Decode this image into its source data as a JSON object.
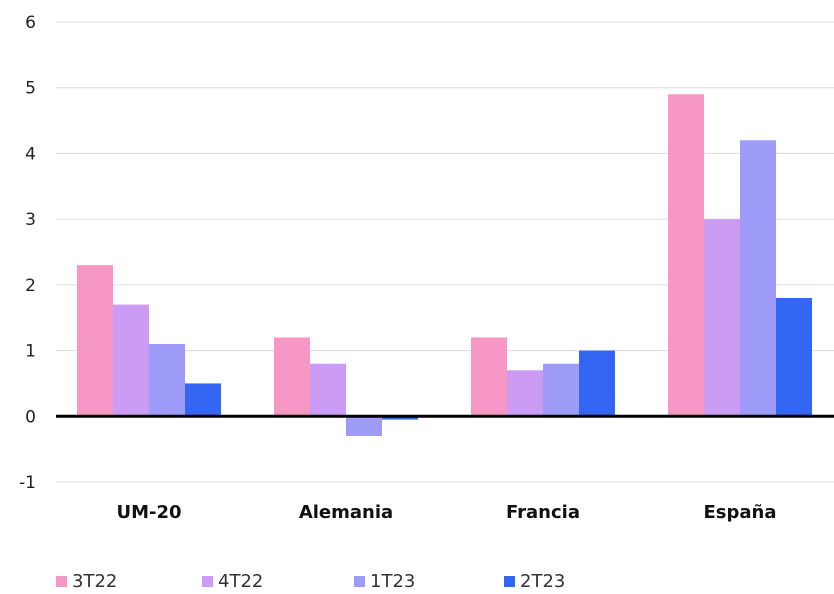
{
  "chart_data": {
    "type": "bar",
    "title": "",
    "xlabel": "",
    "ylabel": "",
    "categories": [
      "UM-20",
      "Alemania",
      "Francia",
      "España"
    ],
    "series": [
      {
        "name": "3T22",
        "color": "#f797c5",
        "values": [
          2.3,
          1.2,
          1.2,
          4.9
        ]
      },
      {
        "name": "4T22",
        "color": "#cc9cf5",
        "values": [
          1.7,
          0.8,
          0.7,
          3.0
        ]
      },
      {
        "name": "1T23",
        "color": "#9e9cf8",
        "values": [
          1.1,
          -0.3,
          0.8,
          4.2
        ]
      },
      {
        "name": "2T23",
        "color": "#3366f2",
        "values": [
          0.5,
          -0.05,
          1.0,
          1.8
        ]
      }
    ],
    "ylim": [
      -1,
      6
    ],
    "yticks": [
      "-1",
      "0",
      "1",
      "2",
      "3",
      "4",
      "5",
      "6"
    ],
    "grid": true,
    "legend_position": "bottom"
  }
}
